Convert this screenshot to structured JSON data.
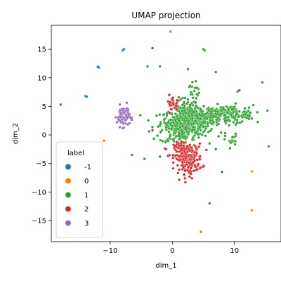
{
  "chart_data": {
    "type": "scatter",
    "title": "UMAP projection",
    "xlabel": "dim_1",
    "ylabel": "dim_2",
    "xlim": [
      -19.5,
      17.5
    ],
    "ylim": [
      -18.7,
      19.2
    ],
    "xticks": [
      -10,
      0,
      10
    ],
    "yticks": [
      -15,
      -10,
      -5,
      0,
      5,
      10,
      15
    ],
    "grid": false,
    "legend": {
      "title": "label",
      "placement": "lower-left"
    },
    "series": [
      {
        "name": "-1",
        "color": "#1f77b4",
        "points": [
          [
            -12,
            12
          ],
          [
            -11.8,
            11.8
          ],
          [
            -14,
            6.8
          ],
          [
            -13.8,
            6.7
          ],
          [
            -18,
            5.3
          ],
          [
            -8,
            14.8
          ],
          [
            -7.8,
            15
          ],
          [
            -3.2,
            15.2
          ],
          [
            -12,
            11.9
          ],
          [
            8,
            -6.5
          ],
          [
            7,
            -2.5
          ],
          [
            6,
            -12
          ]
        ]
      },
      {
        "name": "0",
        "color": "#ff7f0e",
        "points": [
          [
            -0.3,
            18.1
          ],
          [
            -11,
            -1
          ],
          [
            12.8,
            -6.4
          ],
          [
            12.8,
            -13.2
          ],
          [
            4.6,
            -17
          ]
        ]
      },
      {
        "name": "1",
        "color": "#2ca02c",
        "clusters": [
          {
            "cx": 2.5,
            "cy": 2.3,
            "sx": 2.2,
            "sy": 1.0,
            "n": 330
          },
          {
            "cx": 4.5,
            "cy": 3.3,
            "sx": 1.8,
            "sy": 0.7,
            "n": 140
          },
          {
            "cx": 9.0,
            "cy": 3.6,
            "sx": 2.0,
            "sy": 0.8,
            "n": 170
          },
          {
            "cx": 1.5,
            "cy": 0.4,
            "sx": 1.8,
            "sy": 0.9,
            "n": 120
          },
          {
            "cx": 2.2,
            "cy": 4.7,
            "sx": 0.7,
            "sy": 1.0,
            "n": 50
          },
          {
            "cx": 3.5,
            "cy": 8.0,
            "sx": 0.4,
            "sy": 1.0,
            "n": 18
          },
          {
            "cx": 9.5,
            "cy": -1.0,
            "sx": 0.5,
            "sy": 0.6,
            "n": 20
          },
          {
            "cx": 12.0,
            "cy": 3.5,
            "sx": 0.4,
            "sy": 0.6,
            "n": 12
          }
        ],
        "points": [
          [
            -4,
            12
          ],
          [
            -2,
            12
          ],
          [
            5,
            15
          ],
          [
            5.2,
            14.8
          ],
          [
            -6.5,
            -3.5
          ],
          [
            -4.5,
            -4.2
          ],
          [
            2.5,
            11.5
          ],
          [
            10.5,
            7.6
          ],
          [
            14.5,
            9.2
          ],
          [
            15.5,
            -2
          ],
          [
            7,
            11
          ],
          [
            6,
            -1.5
          ],
          [
            -2,
            -3.8
          ],
          [
            1,
            6
          ]
        ]
      },
      {
        "name": "2",
        "color": "#d62728",
        "clusters": [
          {
            "cx": 2.6,
            "cy": -4.2,
            "sx": 1.1,
            "sy": 1.3,
            "n": 200
          },
          {
            "cx": 1.8,
            "cy": -2.5,
            "sx": 0.8,
            "sy": 0.6,
            "n": 50
          },
          {
            "cx": 0.2,
            "cy": 5.3,
            "sx": 0.5,
            "sy": 0.5,
            "n": 24
          }
        ],
        "points": [
          [
            -0.5,
            7
          ],
          [
            -3.2,
            0.8
          ],
          [
            10.8,
            7.8
          ],
          [
            -1,
            -2.5
          ]
        ]
      },
      {
        "name": "3",
        "color": "#9467bd",
        "clusters": [
          {
            "cx": -7.9,
            "cy": 3.3,
            "sx": 0.5,
            "sy": 0.9,
            "n": 90
          }
        ],
        "points": []
      }
    ]
  }
}
